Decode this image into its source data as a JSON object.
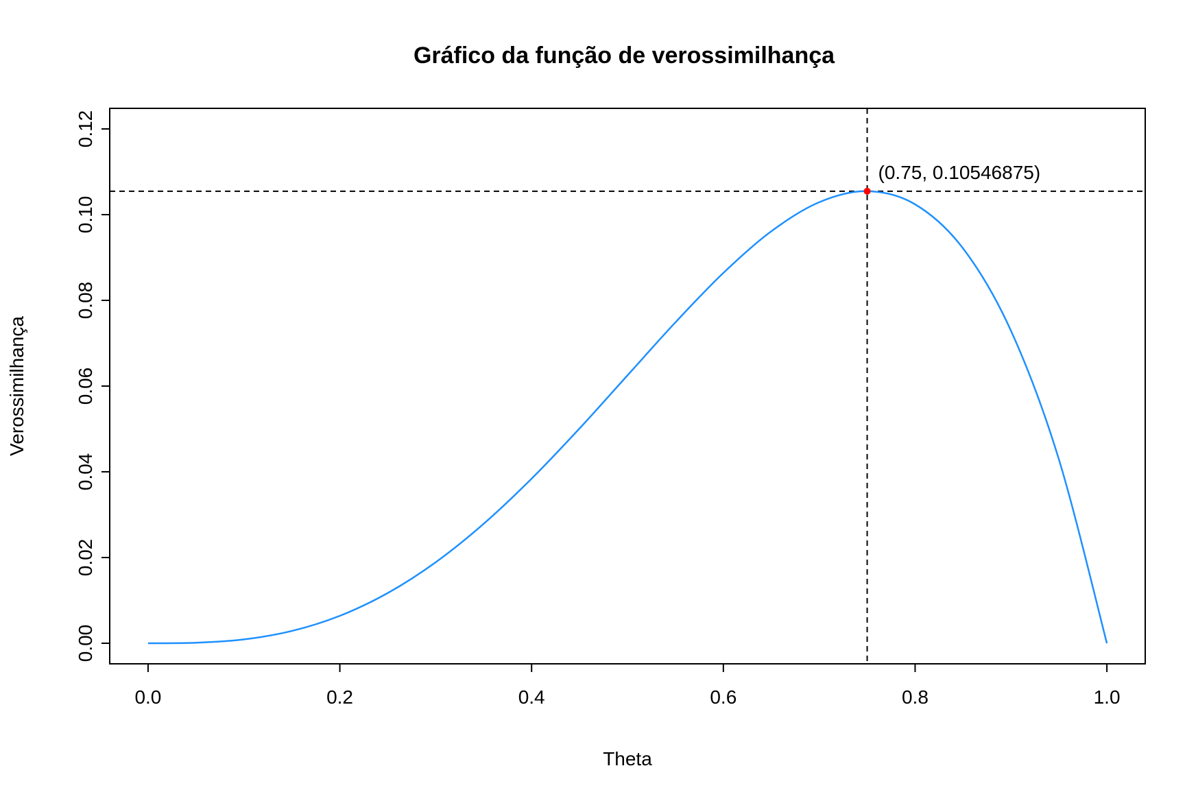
{
  "chart_data": {
    "type": "line",
    "title": "Gráfico da função de verossimilhança",
    "xlabel": "Theta",
    "ylabel": "Verossimilhança",
    "xlim": [
      -0.04,
      1.04
    ],
    "ylim": [
      -0.0048,
      0.1248
    ],
    "x_ticks": [
      0.0,
      0.2,
      0.4,
      0.6,
      0.8,
      1.0
    ],
    "x_tick_labels": [
      "0.0",
      "0.2",
      "0.4",
      "0.6",
      "0.8",
      "1.0"
    ],
    "y_ticks": [
      0.0,
      0.02,
      0.04,
      0.06,
      0.08,
      0.1,
      0.12
    ],
    "y_tick_labels": [
      "0.00",
      "0.02",
      "0.04",
      "0.06",
      "0.08",
      "0.10",
      "0.12"
    ],
    "grid": false,
    "legend": "none",
    "series": [
      {
        "color": "#1E90FF",
        "x": [
          0.0,
          0.05,
          0.1,
          0.15,
          0.2,
          0.25,
          0.3,
          0.35,
          0.4,
          0.45,
          0.5,
          0.55,
          0.6,
          0.65,
          0.7,
          0.75,
          0.8,
          0.85,
          0.9,
          0.95,
          1.0
        ],
        "y": [
          0.0,
          0.000119,
          0.0009,
          0.002869,
          0.0064,
          0.011719,
          0.0189,
          0.027869,
          0.0384,
          0.050119,
          0.0625,
          0.074869,
          0.0864,
          0.096119,
          0.1029,
          0.105469,
          0.1024,
          0.092119,
          0.0729,
          0.042869,
          0.0
        ]
      }
    ],
    "highlight_point": {
      "x": 0.75,
      "y": 0.10546875,
      "color": "#FF0000",
      "label": "(0.75, 0.10546875)"
    },
    "reference_lines": {
      "vertical_x": 0.75,
      "horizontal_y": 0.10546875,
      "style": "dashed",
      "color": "#000000"
    }
  }
}
